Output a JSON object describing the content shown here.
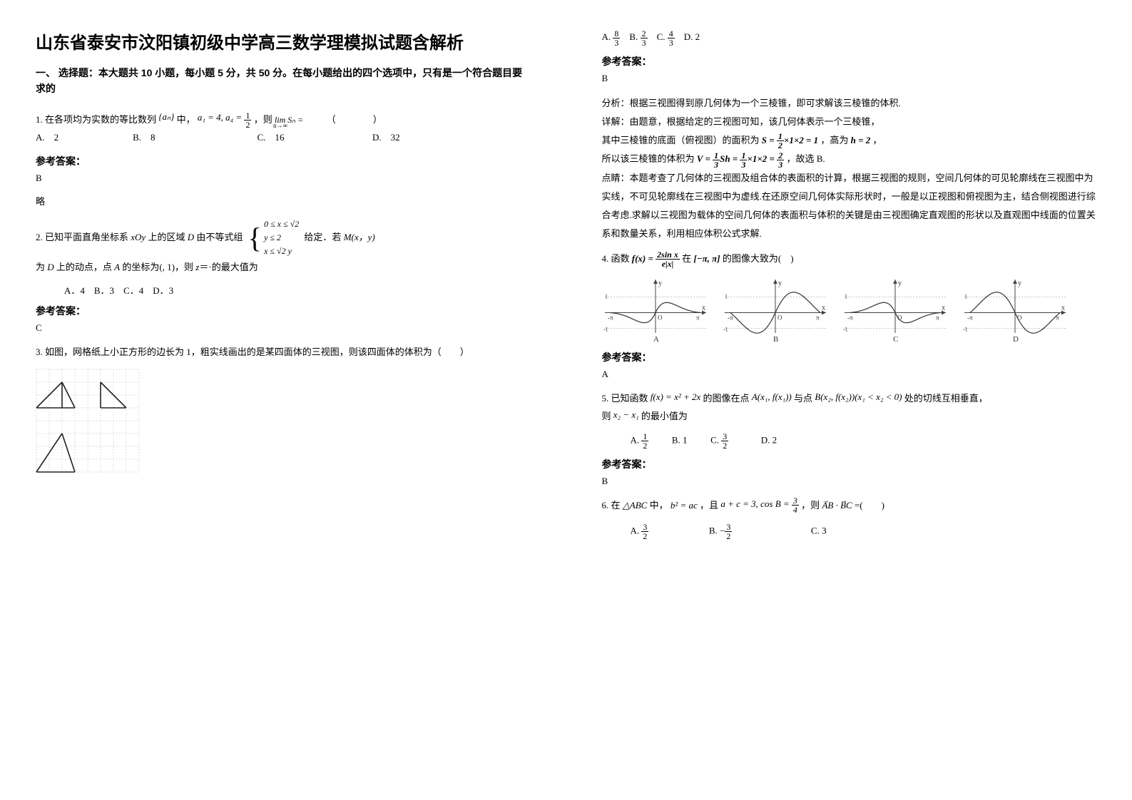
{
  "title": "山东省泰安市汶阳镇初级中学高三数学理模拟试题含解析",
  "section_intro": "一、 选择题：本大题共 10 小题，每小题 5 分，共 50 分。在每小题给出的四个选项中，只有是一个符合题目要求的",
  "answer_label": "参考答案：",
  "q1": {
    "text_a": "1. 在各项均为实数的等比数列",
    "seq": "{aₙ}",
    "text_b": "中，",
    "cond": "a₁ = 4, a₄ = ",
    "text_c": "，则",
    "lim": "lim Sₙ =",
    "lim_sub": "n→∞",
    "blank": "（　　　　）",
    "optA": "A.　2",
    "optB": "B.　8",
    "optC": "C.　16",
    "optD": "D.　32",
    "answer": "B",
    "note": "略"
  },
  "q2": {
    "text_a": "2. 已知平面直角坐标系 ",
    "xoy": "xOy",
    "text_b": " 上的区域 ",
    "D": "D",
    "text_c": " 由不等式组",
    "cond1": "0 ≤ x ≤ √2",
    "cond2": "y ≤ 2",
    "cond3": "x ≤ √2 y",
    "text_d": "给定．若 ",
    "M": "M(x，y)",
    "text_e": "为 ",
    "text_f": " 上的动点，点 ",
    "A": "A",
    "text_g": " 的坐标为(, 1)，则 ",
    "z": "z",
    "text_h": "＝·的最大值为",
    "optA": "A．4",
    "optB": "B．3",
    "optC": "C．4",
    "optD": "D．3",
    "answer": "C"
  },
  "q3": {
    "text": "3. 如图，网格纸上小正方形的边长为 1，粗实线画出的是某四面体的三视图，则该四面体的体积为（　　）",
    "grid": {
      "cols": 8,
      "rows": 8,
      "cell": 18,
      "stroke_grid": "#bcbcbc",
      "stroke_shape": "#222222"
    },
    "optA_pre": "A. ",
    "optA_n": "8",
    "optA_d": "3",
    "optB_pre": "B. ",
    "optB_n": "2",
    "optB_d": "3",
    "optC_pre": "C. ",
    "optC_n": "4",
    "optC_d": "3",
    "optD_pre": "D. ",
    "optD": "2",
    "answer": "B",
    "explain1": "分析：根据三视图得到原几何体为一个三棱锥，即可求解该三棱锥的体积.",
    "explain2": "详解：由题意，根据给定的三视图可知，该几何体表示一个三棱锥，",
    "explain3a": "其中三棱锥的底面（俯视图）的面积为 ",
    "s_formula": "S = ½×1×2 = 1",
    "explain3b": "，高为",
    "h_formula": "h = 2",
    "explain3c": "，",
    "explain4a": "所以该三棱锥的体积为 ",
    "v_formula": "V = ⅓Sh = ⅓×1×2 = ⅔",
    "explain4b": "，故选 B.",
    "explain5": "点睛：本题考查了几何体的三视图及组合体的表面积的计算，根据三视图的规则，空间几何体的可见轮廓线在三视图中为实线，不可见轮廓线在三视图中为虚线.在还原空间几何体实际形状时，一般是以正视图和俯视图为主，结合侧视图进行综合考虑.求解以三视图为载体的空间几何体的表面积与体积的关键是由三视图确定直观图的形状以及直观图中线面的位置关系和数量关系，利用相应体积公式求解."
  },
  "q4": {
    "text_a": "4. 函数 ",
    "func_lhs": "f(x) = ",
    "func_num": "2sin x",
    "func_den": "e|x|",
    "text_b": " 在",
    "interval": "[−π, π]",
    "text_c": "的图像大致为(　)",
    "graphs": {
      "w": 150,
      "h": 95,
      "axis_color": "#444",
      "curve_color": "#333",
      "dash_color": "#888"
    },
    "labels": [
      "A",
      "B",
      "C",
      "D"
    ],
    "answer": "A"
  },
  "q5": {
    "text_a": "5. 已知函数",
    "func": "f(x) = x² + 2x",
    "text_b": "的图像在点",
    "ptA": "A(x₁, f(x₁))",
    "text_c": "与点",
    "ptB": "B(x₂, f(x₂))(x₁ < x₂ < 0)",
    "text_d": "处的切线互相垂直，",
    "text_e": "则",
    "diff": "x₂ − x₁",
    "text_f": "的最小值为",
    "optA_pre": "A. ",
    "optA_n": "1",
    "optA_d": "2",
    "optB": "B. 1",
    "optC_pre": "C. ",
    "optC_n": "3",
    "optC_d": "2",
    "optD": "D. 2",
    "answer": "B"
  },
  "q6": {
    "text_a": "6. 在",
    "tri": "△ABC",
    "text_b": "中，",
    "cond1": "b² = ac",
    "text_c": "，且",
    "cond2a": "a + c = 3, cos B = ",
    "cond2_n": "3",
    "cond2_d": "4",
    "text_d": "，则",
    "vec": "AB⃗ · BC⃗",
    "text_e": "=(　　)",
    "optA_pre": "A. ",
    "optA_n": "3",
    "optA_d": "2",
    "optB_pre": "B. ",
    "optB_neg": "−",
    "optB_n": "3",
    "optB_d": "2",
    "optC": "C. 3"
  }
}
